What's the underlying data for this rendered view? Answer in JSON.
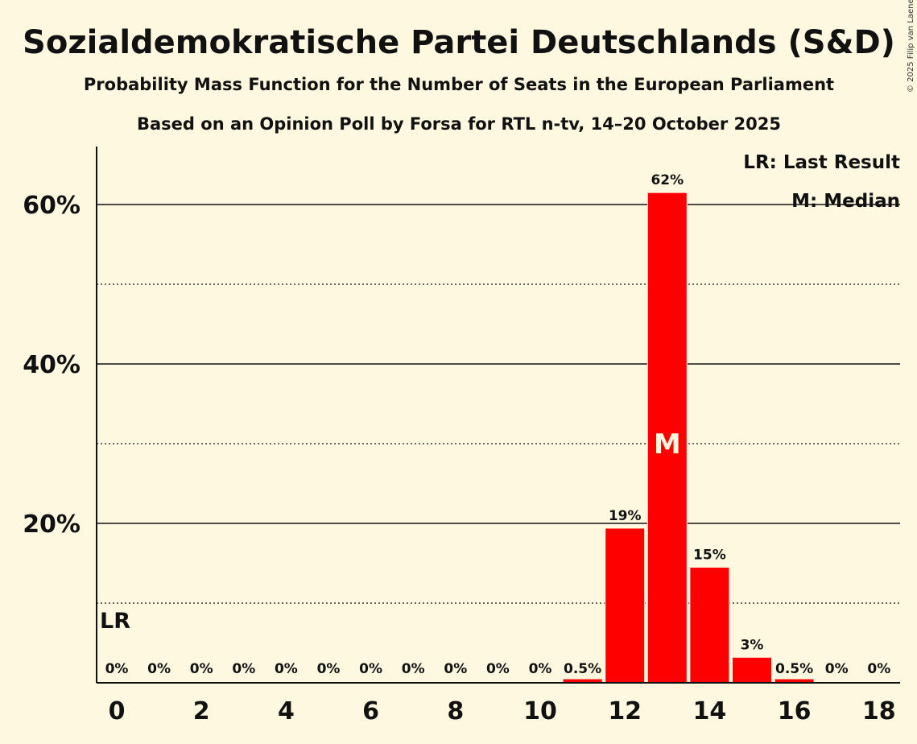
{
  "chart_data": {
    "type": "bar",
    "title": "Sozialdemokratische Partei Deutschlands (S&D)",
    "subtitle": "Probability Mass Function for the Number of Seats in the European Parliament",
    "subtitle2": "Based on an Opinion Poll by Forsa for RTL n-tv, 14–20 October 2025",
    "categories": [
      0,
      1,
      2,
      3,
      4,
      5,
      6,
      7,
      8,
      9,
      10,
      11,
      12,
      13,
      14,
      15,
      16,
      17,
      18
    ],
    "values": [
      0,
      0,
      0,
      0,
      0,
      0,
      0,
      0,
      0,
      0,
      0,
      0.5,
      19.4,
      61.5,
      14.5,
      3.2,
      0.5,
      0,
      0
    ],
    "value_labels": [
      "0%",
      "0%",
      "0%",
      "0%",
      "0%",
      "0%",
      "0%",
      "0%",
      "0%",
      "0%",
      "0%",
      "0.5%",
      "19%",
      "62%",
      "15%",
      "3%",
      "0.5%",
      "0%",
      "0%"
    ],
    "x_tick_labels": [
      "0",
      "2",
      "4",
      "6",
      "8",
      "10",
      "12",
      "14",
      "16",
      "18"
    ],
    "x_ticks": [
      0,
      2,
      4,
      6,
      8,
      10,
      12,
      14,
      16,
      18
    ],
    "y_ticks": [
      20,
      40,
      60
    ],
    "y_tick_labels": [
      "20%",
      "40%",
      "60%"
    ],
    "y_minor_ticks": [
      10,
      30,
      50
    ],
    "ylim": [
      0,
      67
    ],
    "last_result_seat": 0,
    "last_result_label": "LR",
    "median_seat": 13,
    "median_label": "M",
    "legend": [
      "LR: Last Result",
      "M: Median"
    ],
    "legend_position": "top-right",
    "bar_color": "#ff0000",
    "copyright": "© 2025 Filip van Laenen"
  }
}
